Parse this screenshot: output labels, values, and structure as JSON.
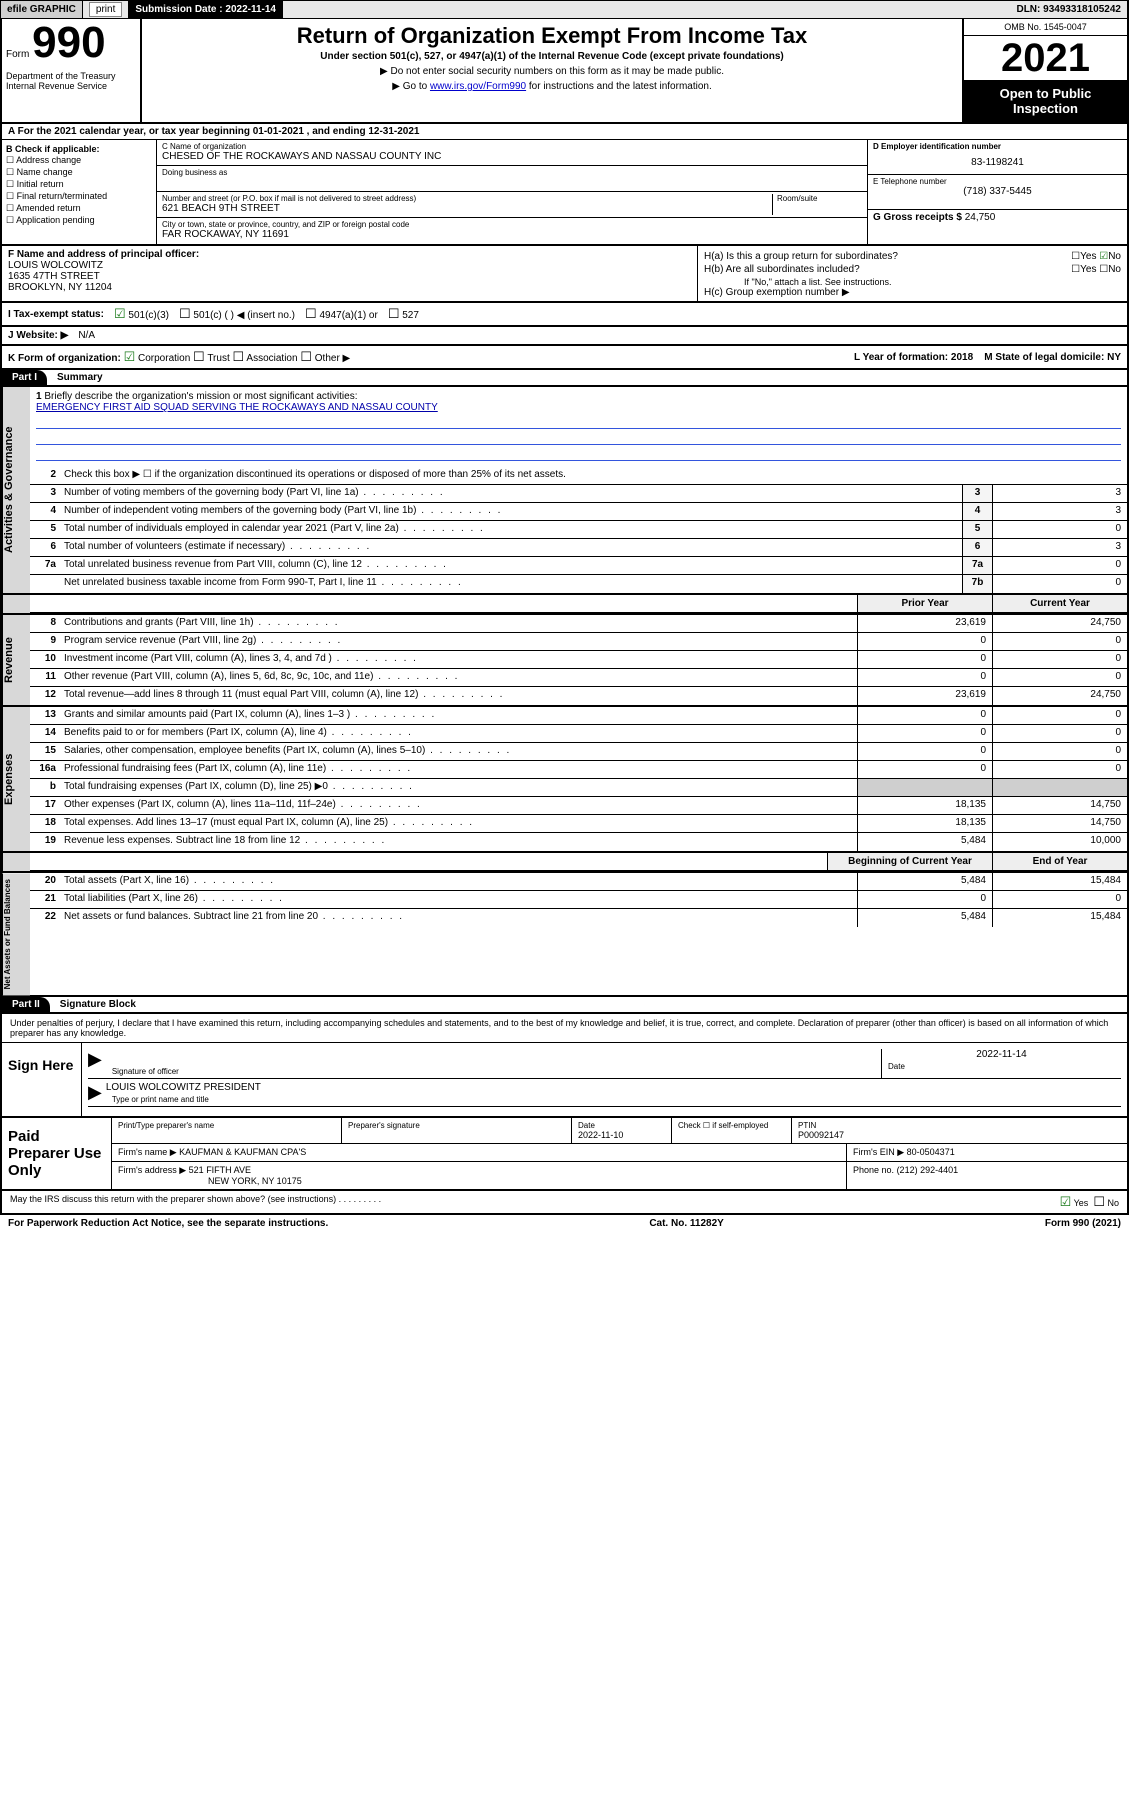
{
  "topbar": {
    "efile": "efile GRAPHIC",
    "print": "print",
    "sub_label": "Submission Date :",
    "sub_date": "2022-11-14",
    "dln": "DLN: 93493318105242"
  },
  "header": {
    "form_word": "Form",
    "form_num": "990",
    "dept": "Department of the Treasury Internal Revenue Service",
    "title": "Return of Organization Exempt From Income Tax",
    "sub": "Under section 501(c), 527, or 4947(a)(1) of the Internal Revenue Code (except private foundations)",
    "note1": "Do not enter social security numbers on this form as it may be made public.",
    "note2_pre": "Go to ",
    "note2_link": "www.irs.gov/Form990",
    "note2_post": " for instructions and the latest information.",
    "omb": "OMB No. 1545-0047",
    "year": "2021",
    "open": "Open to Public Inspection"
  },
  "row_a": "For the 2021 calendar year, or tax year beginning 01-01-2021   , and ending 12-31-2021",
  "col_b": {
    "hdr": "B Check if applicable:",
    "items": [
      "Address change",
      "Name change",
      "Initial return",
      "Final return/terminated",
      "Amended return",
      "Application pending"
    ]
  },
  "col_c": {
    "name_lbl": "C Name of organization",
    "name": "CHESED OF THE ROCKAWAYS AND NASSAU COUNTY INC",
    "dba_lbl": "Doing business as",
    "dba": "",
    "addr_lbl": "Number and street (or P.O. box if mail is not delivered to street address)",
    "room_lbl": "Room/suite",
    "addr": "621 BEACH 9TH STREET",
    "city_lbl": "City or town, state or province, country, and ZIP or foreign postal code",
    "city": "FAR ROCKAWAY, NY  11691"
  },
  "col_de": {
    "d_lbl": "D Employer identification number",
    "d_val": "83-1198241",
    "e_lbl": "E Telephone number",
    "e_val": "(718) 337-5445",
    "g_lbl": "G Gross receipts $",
    "g_val": "24,750"
  },
  "block_f": {
    "f_lbl": "F Name and address of principal officer:",
    "f_name": "LOUIS WOLCOWITZ",
    "f_addr1": "1635 47TH STREET",
    "f_addr2": "BROOKLYN, NY  11204"
  },
  "block_h": {
    "ha": "H(a)  Is this a group return for subordinates?",
    "hb": "H(b)  Are all subordinates included?",
    "hb_note": "If \"No,\" attach a list. See instructions.",
    "hc": "H(c)  Group exemption number ▶",
    "yes": "Yes",
    "no": "No"
  },
  "row_i": {
    "lbl": "I  Tax-exempt status:",
    "opts": [
      "501(c)(3)",
      "501(c) (  ) ◀ (insert no.)",
      "4947(a)(1) or",
      "527"
    ]
  },
  "row_j": {
    "lbl": "J  Website: ▶",
    "val": "N/A"
  },
  "row_k": {
    "lbl": "K Form of organization:",
    "opts": [
      "Corporation",
      "Trust",
      "Association",
      "Other ▶"
    ],
    "l": "L Year of formation: 2018",
    "m": "M State of legal domicile: NY"
  },
  "part1": {
    "hdr": "Part I",
    "title": "Summary"
  },
  "summary_gov": {
    "vtab": "Activities & Governance",
    "l1_lbl": "Briefly describe the organization's mission or most significant activities:",
    "l1_txt": "EMERGENCY FIRST AID SQUAD SERVING THE ROCKAWAYS AND NASSAU COUNTY",
    "l2": "Check this box ▶ ☐  if the organization discontinued its operations or disposed of more than 25% of its net assets.",
    "lines": [
      {
        "n": "3",
        "t": "Number of voting members of the governing body (Part VI, line 1a)",
        "b": "3",
        "v": "3"
      },
      {
        "n": "4",
        "t": "Number of independent voting members of the governing body (Part VI, line 1b)",
        "b": "4",
        "v": "3"
      },
      {
        "n": "5",
        "t": "Total number of individuals employed in calendar year 2021 (Part V, line 2a)",
        "b": "5",
        "v": "0"
      },
      {
        "n": "6",
        "t": "Total number of volunteers (estimate if necessary)",
        "b": "6",
        "v": "3"
      },
      {
        "n": "7a",
        "t": "Total unrelated business revenue from Part VIII, column (C), line 12",
        "b": "7a",
        "v": "0"
      },
      {
        "n": "",
        "t": "Net unrelated business taxable income from Form 990-T, Part I, line 11",
        "b": "7b",
        "v": "0"
      }
    ]
  },
  "cols_hdr": {
    "prior": "Prior Year",
    "current": "Current Year"
  },
  "revenue": {
    "vtab": "Revenue",
    "lines": [
      {
        "n": "8",
        "t": "Contributions and grants (Part VIII, line 1h)",
        "p": "23,619",
        "c": "24,750"
      },
      {
        "n": "9",
        "t": "Program service revenue (Part VIII, line 2g)",
        "p": "0",
        "c": "0"
      },
      {
        "n": "10",
        "t": "Investment income (Part VIII, column (A), lines 3, 4, and 7d )",
        "p": "0",
        "c": "0"
      },
      {
        "n": "11",
        "t": "Other revenue (Part VIII, column (A), lines 5, 6d, 8c, 9c, 10c, and 11e)",
        "p": "0",
        "c": "0"
      },
      {
        "n": "12",
        "t": "Total revenue—add lines 8 through 11 (must equal Part VIII, column (A), line 12)",
        "p": "23,619",
        "c": "24,750"
      }
    ]
  },
  "expenses": {
    "vtab": "Expenses",
    "lines": [
      {
        "n": "13",
        "t": "Grants and similar amounts paid (Part IX, column (A), lines 1–3 )",
        "p": "0",
        "c": "0"
      },
      {
        "n": "14",
        "t": "Benefits paid to or for members (Part IX, column (A), line 4)",
        "p": "0",
        "c": "0"
      },
      {
        "n": "15",
        "t": "Salaries, other compensation, employee benefits (Part IX, column (A), lines 5–10)",
        "p": "0",
        "c": "0"
      },
      {
        "n": "16a",
        "t": "Professional fundraising fees (Part IX, column (A), line 11e)",
        "p": "0",
        "c": "0"
      },
      {
        "n": "b",
        "t": "Total fundraising expenses (Part IX, column (D), line 25) ▶0",
        "p": "",
        "c": "",
        "shade": true
      },
      {
        "n": "17",
        "t": "Other expenses (Part IX, column (A), lines 11a–11d, 11f–24e)",
        "p": "18,135",
        "c": "14,750"
      },
      {
        "n": "18",
        "t": "Total expenses. Add lines 13–17 (must equal Part IX, column (A), line 25)",
        "p": "18,135",
        "c": "14,750"
      },
      {
        "n": "19",
        "t": "Revenue less expenses. Subtract line 18 from line 12",
        "p": "5,484",
        "c": "10,000"
      }
    ]
  },
  "cols_hdr2": {
    "prior": "Beginning of Current Year",
    "current": "End of Year"
  },
  "netassets": {
    "vtab": "Net Assets or Fund Balances",
    "lines": [
      {
        "n": "20",
        "t": "Total assets (Part X, line 16)",
        "p": "5,484",
        "c": "15,484"
      },
      {
        "n": "21",
        "t": "Total liabilities (Part X, line 26)",
        "p": "0",
        "c": "0"
      },
      {
        "n": "22",
        "t": "Net assets or fund balances. Subtract line 21 from line 20",
        "p": "5,484",
        "c": "15,484"
      }
    ]
  },
  "part2": {
    "hdr": "Part II",
    "title": "Signature Block"
  },
  "sig": {
    "decl": "Under penalties of perjury, I declare that I have examined this return, including accompanying schedules and statements, and to the best of my knowledge and belief, it is true, correct, and complete. Declaration of preparer (other than officer) is based on all information of which preparer has any knowledge.",
    "sign_here": "Sign Here",
    "sig_of": "Signature of officer",
    "date_lbl": "Date",
    "date_val": "2022-11-14",
    "name_title": "LOUIS WOLCOWITZ  PRESIDENT",
    "name_lbl": "Type or print name and title"
  },
  "prep": {
    "lab": "Paid Preparer Use Only",
    "h1": "Print/Type preparer's name",
    "h2": "Preparer's signature",
    "h3": "Date",
    "h3v": "2022-11-10",
    "h4": "Check ☐ if self-employed",
    "h5": "PTIN",
    "h5v": "P00092147",
    "firm_lbl": "Firm's name    ▶",
    "firm": "KAUFMAN & KAUFMAN CPA'S",
    "ein_lbl": "Firm's EIN ▶",
    "ein": "80-0504371",
    "addr_lbl": "Firm's address ▶",
    "addr1": "521 FIFTH AVE",
    "addr2": "NEW YORK, NY  10175",
    "phone_lbl": "Phone no.",
    "phone": "(212) 292-4401"
  },
  "footer": {
    "discuss": "May the IRS discuss this return with the preparer shown above? (see instructions)",
    "yes": "Yes",
    "no": "No",
    "pra": "For Paperwork Reduction Act Notice, see the separate instructions.",
    "cat": "Cat. No. 11282Y",
    "form": "Form 990 (2021)"
  }
}
